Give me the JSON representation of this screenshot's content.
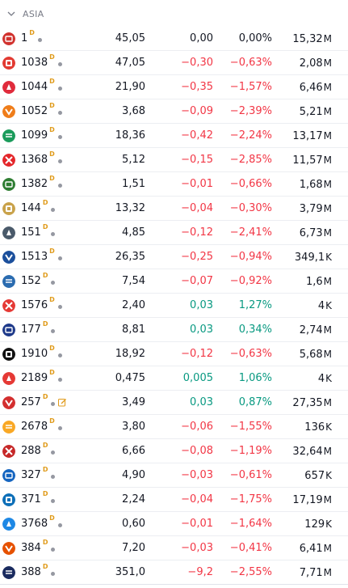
{
  "section": {
    "title": "ASIA"
  },
  "colors": {
    "negative": "#f23645",
    "positive": "#089981",
    "neutral": "#131722",
    "badge": "#e09b1b"
  },
  "rows": [
    {
      "symbol": "1",
      "badge": "D",
      "logo_icon": "ck-hutchison-logo",
      "logo_color": "#d1322e",
      "last": "45,05",
      "change": "0,00",
      "change_pct": "0,00%",
      "volume": "15,32",
      "volume_unit": "M",
      "dir": "neu",
      "note": false
    },
    {
      "symbol": "1038",
      "badge": "D",
      "logo_icon": "cki-logo",
      "logo_color": "#e23a32",
      "last": "47,05",
      "change": "−0,30",
      "change_pct": "−0,63%",
      "volume": "2,08",
      "volume_unit": "M",
      "dir": "neg",
      "note": false
    },
    {
      "symbol": "1044",
      "badge": "D",
      "logo_icon": "hengan-logo",
      "logo_color": "#e02b3c",
      "last": "21,90",
      "change": "−0,35",
      "change_pct": "−1,57%",
      "volume": "6,46",
      "volume_unit": "M",
      "dir": "neg",
      "note": false
    },
    {
      "symbol": "1052",
      "badge": "D",
      "logo_icon": "yuexiu-logo",
      "logo_color": "#ef7d1a",
      "last": "3,68",
      "change": "−0,09",
      "change_pct": "−2,39%",
      "volume": "5,21",
      "volume_unit": "M",
      "dir": "neg",
      "note": false
    },
    {
      "symbol": "1099",
      "badge": "D",
      "logo_icon": "sinopharm-logo",
      "logo_color": "#1a9b5b",
      "last": "18,36",
      "change": "−0,42",
      "change_pct": "−2,24%",
      "volume": "13,17",
      "volume_unit": "M",
      "dir": "neg",
      "note": false
    },
    {
      "symbol": "1368",
      "badge": "D",
      "logo_icon": "xtep-logo",
      "logo_color": "#e4262a",
      "last": "5,12",
      "change": "−0,15",
      "change_pct": "−2,85%",
      "volume": "11,57",
      "volume_unit": "M",
      "dir": "neg",
      "note": false
    },
    {
      "symbol": "1382",
      "badge": "D",
      "logo_icon": "pacific-textiles-logo",
      "logo_color": "#2e7d32",
      "last": "1,51",
      "change": "−0,01",
      "change_pct": "−0,66%",
      "volume": "1,68",
      "volume_unit": "M",
      "dir": "neg",
      "note": false
    },
    {
      "symbol": "144",
      "badge": "D",
      "logo_icon": "cm-port-logo",
      "logo_color": "#c9a24a",
      "last": "13,32",
      "change": "−0,04",
      "change_pct": "−0,30%",
      "volume": "3,79",
      "volume_unit": "M",
      "dir": "neg",
      "note": false
    },
    {
      "symbol": "151",
      "badge": "D",
      "logo_icon": "want-want-logo",
      "logo_color": "#4a5a6a",
      "last": "4,85",
      "change": "−0,12",
      "change_pct": "−2,41%",
      "volume": "6,73",
      "volume_unit": "M",
      "dir": "neg",
      "note": false
    },
    {
      "symbol": "1513",
      "badge": "D",
      "logo_icon": "livzon-logo",
      "logo_color": "#1b4f9c",
      "last": "26,35",
      "change": "−0,25",
      "change_pct": "−0,94%",
      "volume": "349,1",
      "volume_unit": "K",
      "dir": "neg",
      "note": false
    },
    {
      "symbol": "152",
      "badge": "D",
      "logo_icon": "shenzhen-intl-logo",
      "logo_color": "#2b6cb0",
      "last": "7,54",
      "change": "−0,07",
      "change_pct": "−0,92%",
      "volume": "1,6",
      "volume_unit": "M",
      "dir": "neg",
      "note": false
    },
    {
      "symbol": "1576",
      "badge": "D",
      "logo_icon": "qilu-expressway-logo",
      "logo_color": "#e53935",
      "last": "2,40",
      "change": "0,03",
      "change_pct": "1,27%",
      "volume": "4",
      "volume_unit": "K",
      "dir": "pos",
      "note": false
    },
    {
      "symbol": "177",
      "badge": "D",
      "logo_icon": "jiangsu-expressway-logo",
      "logo_color": "#1e3a8a",
      "last": "8,81",
      "change": "0,03",
      "change_pct": "0,34%",
      "volume": "2,74",
      "volume_unit": "M",
      "dir": "pos",
      "note": false
    },
    {
      "symbol": "1910",
      "badge": "D",
      "logo_icon": "samsonite-logo",
      "logo_color": "#111111",
      "last": "18,92",
      "change": "−0,12",
      "change_pct": "−0,63%",
      "volume": "5,68",
      "volume_unit": "M",
      "dir": "neg",
      "note": false
    },
    {
      "symbol": "2189",
      "badge": "D",
      "logo_icon": "kato-logo",
      "logo_color": "#e53935",
      "last": "0,475",
      "change": "0,005",
      "change_pct": "1,06%",
      "volume": "4",
      "volume_unit": "K",
      "dir": "pos",
      "note": false
    },
    {
      "symbol": "257",
      "badge": "D",
      "logo_icon": "everbright-env-logo",
      "logo_color": "#d32f2f",
      "last": "3,49",
      "change": "0,03",
      "change_pct": "0,87%",
      "volume": "27,35",
      "volume_unit": "M",
      "dir": "pos",
      "note": true
    },
    {
      "symbol": "2678",
      "badge": "D",
      "logo_icon": "texhong-logo",
      "logo_color": "#f9a825",
      "last": "3,80",
      "change": "−0,06",
      "change_pct": "−1,55%",
      "volume": "136",
      "volume_unit": "K",
      "dir": "neg",
      "note": false
    },
    {
      "symbol": "288",
      "badge": "D",
      "logo_icon": "wh-group-logo",
      "logo_color": "#c62828",
      "last": "6,66",
      "change": "−0,08",
      "change_pct": "−1,19%",
      "volume": "32,64",
      "volume_unit": "M",
      "dir": "neg",
      "note": false
    },
    {
      "symbol": "327",
      "badge": "D",
      "logo_icon": "pax-global-logo",
      "logo_color": "#1565c0",
      "last": "4,90",
      "change": "−0,03",
      "change_pct": "−0,61%",
      "volume": "657",
      "volume_unit": "K",
      "dir": "neg",
      "note": false
    },
    {
      "symbol": "371",
      "badge": "D",
      "logo_icon": "bj-enterprises-water-logo",
      "logo_color": "#0d6fb8",
      "last": "2,24",
      "change": "−0,04",
      "change_pct": "−1,75%",
      "volume": "17,19",
      "volume_unit": "M",
      "dir": "neg",
      "note": false
    },
    {
      "symbol": "3768",
      "badge": "D",
      "logo_icon": "kunming-dianchi-logo",
      "logo_color": "#1e88e5",
      "last": "0,60",
      "change": "−0,01",
      "change_pct": "−1,64%",
      "volume": "129",
      "volume_unit": "K",
      "dir": "neg",
      "note": false
    },
    {
      "symbol": "384",
      "badge": "D",
      "logo_icon": "china-gas-logo",
      "logo_color": "#e65100",
      "last": "7,20",
      "change": "−0,03",
      "change_pct": "−0,41%",
      "volume": "6,41",
      "volume_unit": "M",
      "dir": "neg",
      "note": false
    },
    {
      "symbol": "388",
      "badge": "D",
      "logo_icon": "hkex-logo",
      "logo_color": "#1a2b5f",
      "last": "351,0",
      "change": "−9,2",
      "change_pct": "−2,55%",
      "volume": "7,71",
      "volume_unit": "M",
      "dir": "neg",
      "note": false
    }
  ]
}
